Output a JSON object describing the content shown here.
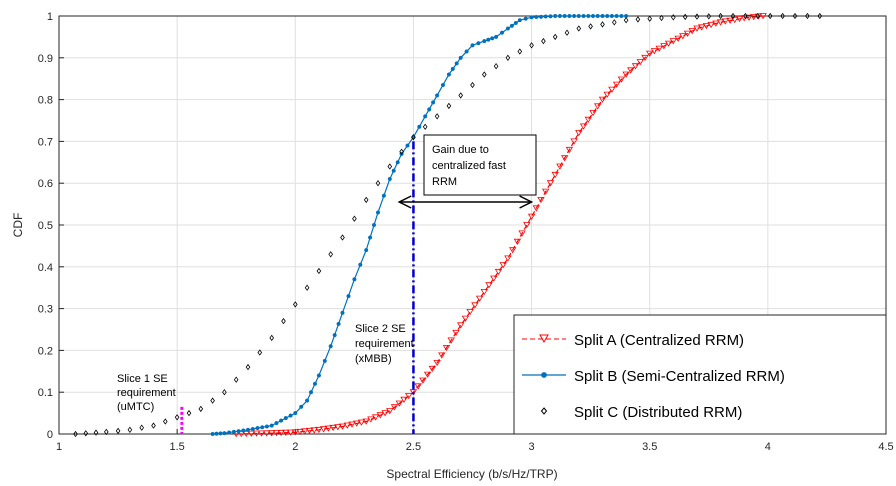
{
  "chart_data": {
    "type": "line",
    "xlabel": "Spectral Efficiency (b/s/Hz/TRP)",
    "ylabel": "CDF",
    "xlim": [
      1,
      4.5
    ],
    "ylim": [
      0,
      1
    ],
    "x_ticks": [
      "1",
      "1.5",
      "2",
      "2.5",
      "3",
      "3.5",
      "4",
      "4.5"
    ],
    "y_ticks": [
      "0",
      "0.1",
      "0.2",
      "0.3",
      "0.4",
      "0.5",
      "0.6",
      "0.7",
      "0.8",
      "0.9",
      "1"
    ],
    "grid": true,
    "legend_position": "bottom-right",
    "series": [
      {
        "name": "Split A (Centralized RRM)",
        "color": "#ff0000",
        "marker": "triangle-down",
        "line": "dashed",
        "points": [
          [
            1.75,
            0
          ],
          [
            1.9,
            0.002
          ],
          [
            2.0,
            0.004
          ],
          [
            2.1,
            0.01
          ],
          [
            2.2,
            0.018
          ],
          [
            2.3,
            0.03
          ],
          [
            2.4,
            0.055
          ],
          [
            2.5,
            0.1
          ],
          [
            2.6,
            0.17
          ],
          [
            2.7,
            0.26
          ],
          [
            2.8,
            0.34
          ],
          [
            2.9,
            0.42
          ],
          [
            3.0,
            0.52
          ],
          [
            3.1,
            0.62
          ],
          [
            3.2,
            0.72
          ],
          [
            3.3,
            0.8
          ],
          [
            3.4,
            0.86
          ],
          [
            3.5,
            0.91
          ],
          [
            3.6,
            0.94
          ],
          [
            3.7,
            0.97
          ],
          [
            3.8,
            0.985
          ],
          [
            3.9,
            0.995
          ],
          [
            3.98,
            1
          ]
        ]
      },
      {
        "name": "Split B (Semi-Centralized RRM)",
        "color": "#0072bd",
        "marker": "circle",
        "line": "solid",
        "points": [
          [
            1.65,
            0
          ],
          [
            1.7,
            0.002
          ],
          [
            1.8,
            0.01
          ],
          [
            1.9,
            0.02
          ],
          [
            2.0,
            0.05
          ],
          [
            2.05,
            0.08
          ],
          [
            2.1,
            0.14
          ],
          [
            2.15,
            0.21
          ],
          [
            2.2,
            0.29
          ],
          [
            2.25,
            0.37
          ],
          [
            2.3,
            0.44
          ],
          [
            2.35,
            0.53
          ],
          [
            2.4,
            0.61
          ],
          [
            2.45,
            0.67
          ],
          [
            2.5,
            0.71
          ],
          [
            2.55,
            0.76
          ],
          [
            2.6,
            0.81
          ],
          [
            2.65,
            0.86
          ],
          [
            2.7,
            0.9
          ],
          [
            2.75,
            0.93
          ],
          [
            2.8,
            0.94
          ],
          [
            2.85,
            0.95
          ],
          [
            2.9,
            0.97
          ],
          [
            2.95,
            0.99
          ],
          [
            3.0,
            0.997
          ],
          [
            3.1,
            1
          ],
          [
            3.4,
            1
          ]
        ]
      },
      {
        "name": "Split C (Distributed RRM)",
        "color": "#000000",
        "marker": "diamond",
        "line": "none",
        "points": [
          [
            1.07,
            0
          ],
          [
            1.2,
            0.005
          ],
          [
            1.3,
            0.01
          ],
          [
            1.4,
            0.02
          ],
          [
            1.5,
            0.04
          ],
          [
            1.6,
            0.06
          ],
          [
            1.7,
            0.1
          ],
          [
            1.8,
            0.16
          ],
          [
            1.9,
            0.23
          ],
          [
            2.0,
            0.31
          ],
          [
            2.1,
            0.39
          ],
          [
            2.2,
            0.47
          ],
          [
            2.3,
            0.56
          ],
          [
            2.4,
            0.64
          ],
          [
            2.5,
            0.71
          ],
          [
            2.6,
            0.76
          ],
          [
            2.7,
            0.81
          ],
          [
            2.8,
            0.86
          ],
          [
            2.9,
            0.9
          ],
          [
            3.0,
            0.93
          ],
          [
            3.1,
            0.95
          ],
          [
            3.2,
            0.97
          ],
          [
            3.4,
            0.99
          ],
          [
            3.6,
            0.997
          ],
          [
            3.8,
            1
          ],
          [
            4.22,
            1
          ]
        ]
      }
    ],
    "annotations": {
      "slice1": [
        "Slice 1 SE",
        "requirement",
        "(uMTC)"
      ],
      "slice2": [
        "Slice 2 SE",
        "requirement",
        "(xMBB)"
      ],
      "gain": [
        "Gain due to",
        "centralized fast",
        "RRM"
      ]
    },
    "vertical_markers": [
      {
        "x": 1.52,
        "y_max": 0.065,
        "color": "#ff00ff",
        "style": "dotted"
      },
      {
        "x": 2.5,
        "y_max": 0.7,
        "color": "#0000cd",
        "style": "dash-dot"
      }
    ],
    "gain_arrow": {
      "y": 0.555,
      "x_from": 2.44,
      "x_to": 3.0
    }
  }
}
